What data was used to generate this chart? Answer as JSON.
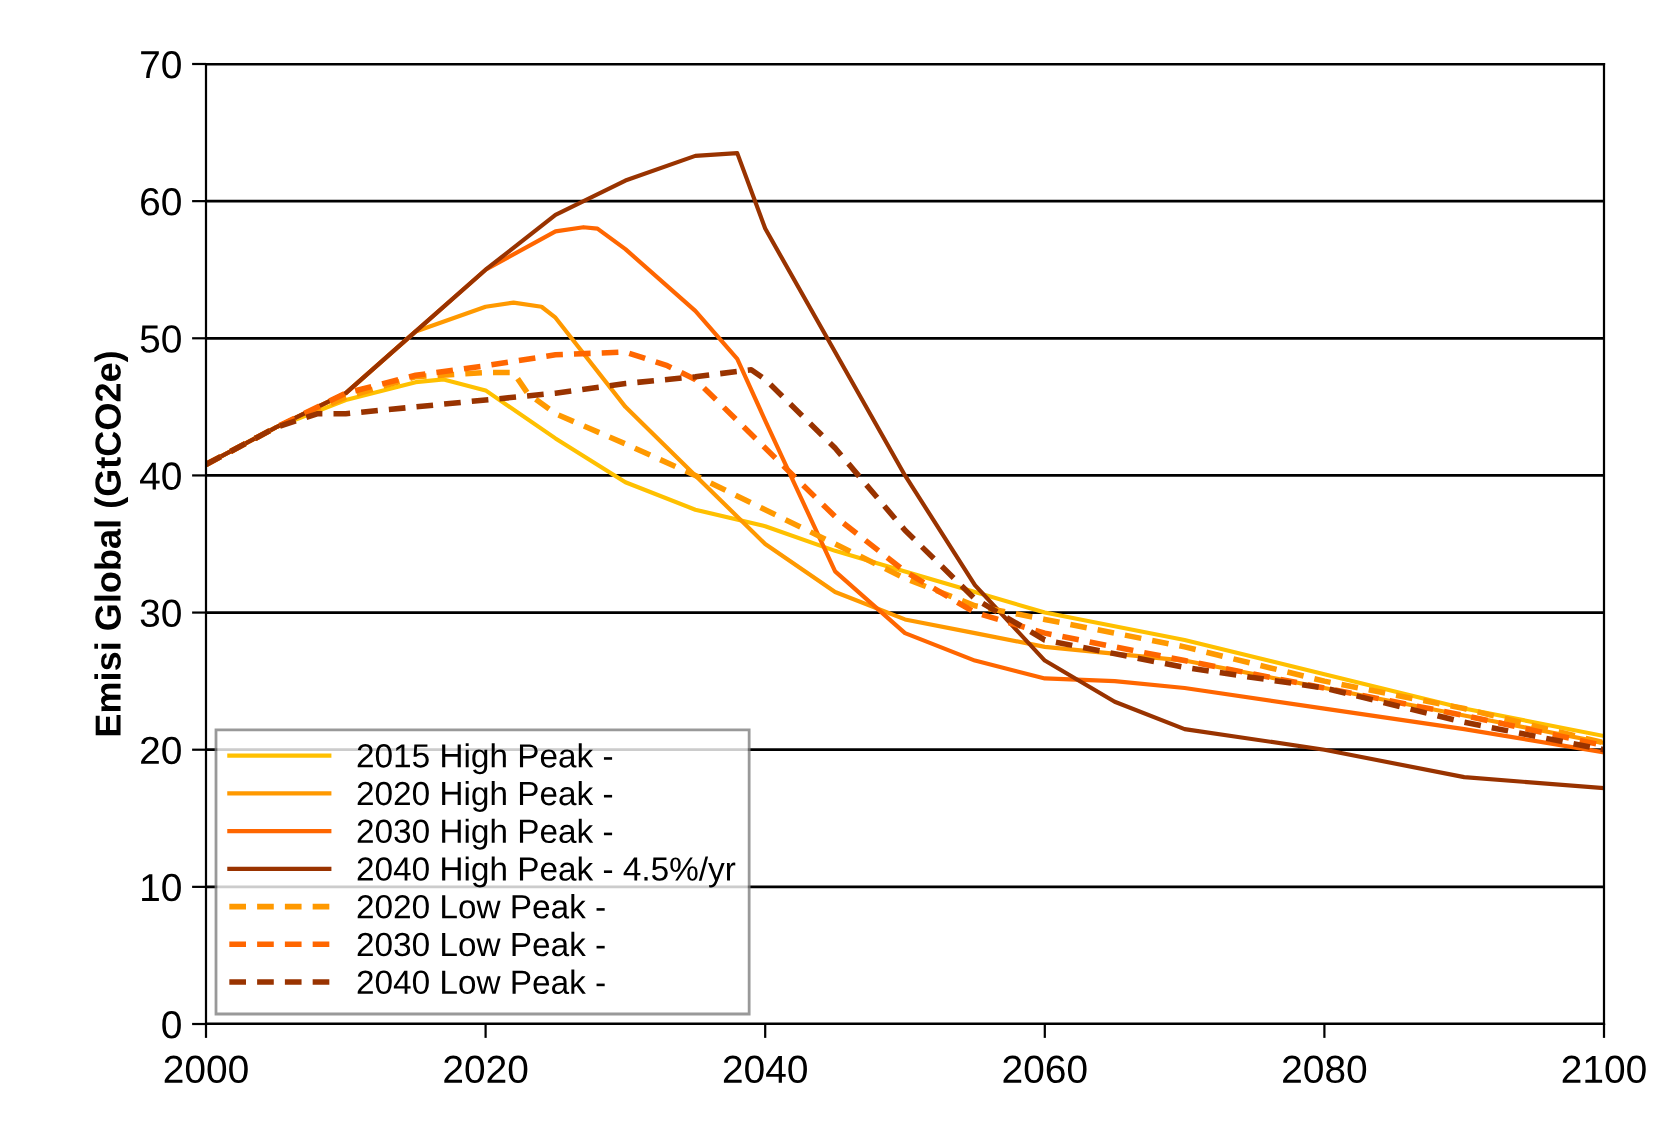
{
  "chart_data": {
    "type": "line",
    "ylabel": "Emisi Global (GtCO2e)",
    "xlim": [
      2000,
      2100
    ],
    "ylim": [
      0,
      70
    ],
    "xticks": [
      2000,
      2020,
      2040,
      2060,
      2080,
      2100
    ],
    "yticks": [
      0,
      10,
      20,
      30,
      40,
      50,
      60,
      70
    ],
    "grid": "y",
    "legend": "bottom left",
    "series": [
      {
        "name": "2015 High Peak -",
        "color": "#ffc000",
        "line_style": "solid",
        "x": [
          2000,
          2005,
          2010,
          2015,
          2017,
          2020,
          2025,
          2030,
          2035,
          2040,
          2045,
          2050,
          2055,
          2060,
          2070,
          2080,
          2090,
          2100
        ],
        "values": [
          40.8,
          43.5,
          45.5,
          46.8,
          47,
          46.2,
          42.7,
          39.5,
          37.5,
          36.3,
          34.5,
          33,
          31.5,
          30,
          28,
          25.5,
          23,
          21
        ]
      },
      {
        "name": "2020 High Peak -",
        "color": "#ff9900",
        "line_style": "solid",
        "x": [
          2000,
          2005,
          2010,
          2015,
          2020,
          2022,
          2024,
          2025,
          2030,
          2035,
          2040,
          2045,
          2050,
          2055,
          2060,
          2070,
          2080,
          2090,
          2100
        ],
        "values": [
          40.8,
          43.5,
          46,
          50.5,
          52.3,
          52.6,
          52.3,
          51.5,
          45,
          40,
          35,
          31.5,
          29.5,
          28.5,
          27.5,
          26.5,
          24.5,
          22.5,
          20.5
        ]
      },
      {
        "name": "2030 High Peak -",
        "color": "#ff6600",
        "line_style": "solid",
        "x": [
          2000,
          2005,
          2010,
          2015,
          2020,
          2025,
          2027,
          2028,
          2030,
          2035,
          2038,
          2040,
          2045,
          2050,
          2055,
          2060,
          2065,
          2070,
          2080,
          2090,
          2100
        ],
        "values": [
          40.8,
          43.5,
          46,
          50.5,
          55,
          57.8,
          58.1,
          58,
          56.5,
          52,
          48.5,
          44,
          33,
          28.5,
          26.5,
          25.2,
          25,
          24.5,
          23,
          21.5,
          19.8
        ]
      },
      {
        "name": "2040 High Peak - 4.5%/yr",
        "color": "#993300",
        "line_style": "solid",
        "x": [
          2000,
          2005,
          2010,
          2015,
          2020,
          2025,
          2030,
          2035,
          2038,
          2040,
          2045,
          2050,
          2055,
          2060,
          2065,
          2070,
          2080,
          2090,
          2100
        ],
        "values": [
          40.8,
          43.5,
          46,
          50.5,
          55,
          59,
          61.5,
          63.3,
          63.5,
          58,
          49,
          40,
          32,
          26.5,
          23.5,
          21.5,
          20,
          18,
          17.2
        ]
      },
      {
        "name": "2020 Low Peak -",
        "color": "#ff9900",
        "line_style": "dashed",
        "x": [
          2000,
          2005,
          2010,
          2015,
          2020,
          2022,
          2023,
          2025,
          2030,
          2035,
          2040,
          2045,
          2050,
          2055,
          2060,
          2070,
          2080,
          2090,
          2100
        ],
        "values": [
          40.8,
          43.5,
          45.7,
          47.2,
          47.5,
          47.5,
          46,
          44.5,
          42.3,
          40,
          37.5,
          35,
          32.5,
          30.5,
          29.5,
          27.5,
          25,
          23,
          20.5
        ]
      },
      {
        "name": "2030 Low Peak -",
        "color": "#ff6600",
        "line_style": "dashed",
        "x": [
          2000,
          2005,
          2010,
          2015,
          2020,
          2025,
          2030,
          2033,
          2035,
          2040,
          2045,
          2050,
          2055,
          2060,
          2070,
          2080,
          2090,
          2100
        ],
        "values": [
          40.8,
          43.5,
          46,
          47.3,
          48,
          48.8,
          49,
          48,
          47,
          42,
          37,
          33,
          30,
          28.5,
          26.5,
          24.5,
          22.5,
          20.3
        ]
      },
      {
        "name": "2040 Low Peak -",
        "color": "#993300",
        "line_style": "dashed",
        "x": [
          2000,
          2005,
          2008,
          2010,
          2015,
          2020,
          2025,
          2030,
          2035,
          2039,
          2040,
          2045,
          2050,
          2055,
          2060,
          2070,
          2080,
          2090,
          2100
        ],
        "values": [
          40.8,
          43.5,
          44.5,
          44.5,
          45,
          45.5,
          46,
          46.7,
          47.2,
          47.7,
          47,
          42,
          36,
          31,
          28,
          26,
          24.5,
          22,
          20
        ]
      }
    ]
  }
}
